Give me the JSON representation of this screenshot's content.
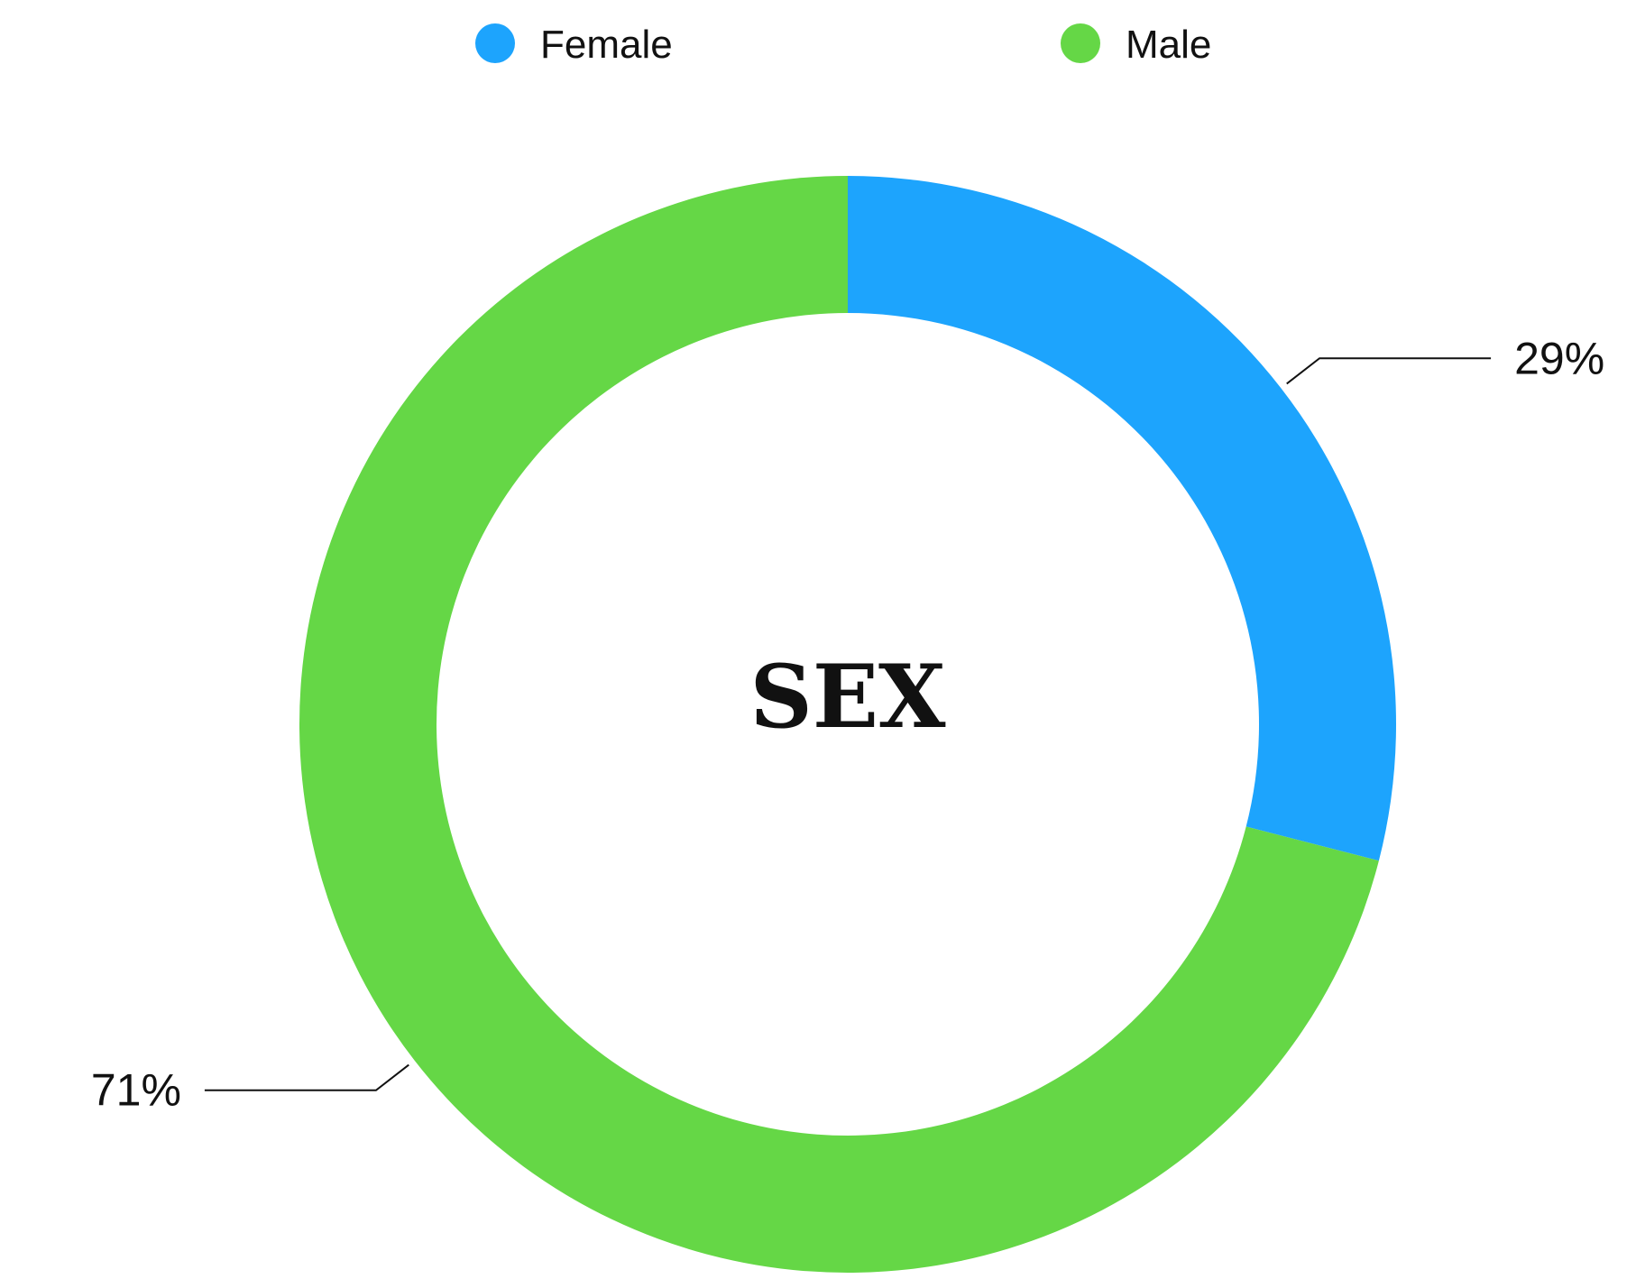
{
  "chart_data": {
    "type": "pie",
    "variant": "donut",
    "title": "SEX",
    "legend_position": "top",
    "series": [
      {
        "name": "Female",
        "value": 29,
        "label": "29%",
        "color": "#1da4fd"
      },
      {
        "name": "Male",
        "value": 71,
        "label": "71%",
        "color": "#65d746"
      }
    ]
  }
}
